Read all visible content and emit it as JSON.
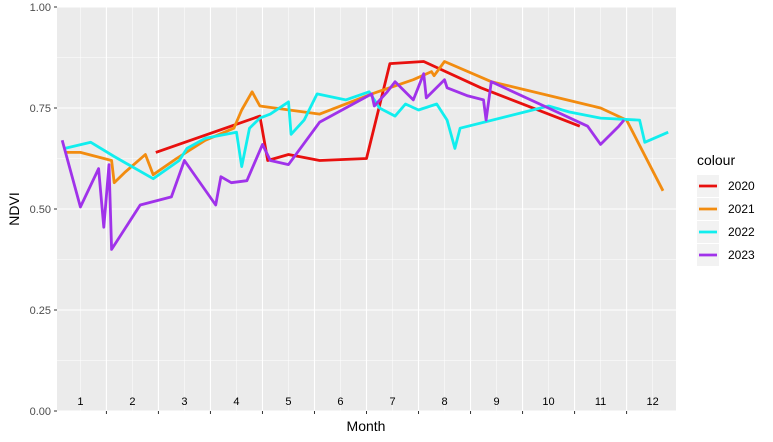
{
  "chart_data": {
    "type": "line",
    "xlabel": "Month",
    "ylabel": "NDVI",
    "ylim": [
      0,
      1
    ],
    "xlim": [
      0.55,
      12.45
    ],
    "yticks": [
      "0.00",
      "0.25",
      "0.50",
      "0.75",
      "1.00"
    ],
    "month_labels": [
      "1",
      "2",
      "3",
      "4",
      "5",
      "6",
      "7",
      "8",
      "9",
      "10",
      "11",
      "12"
    ],
    "grid": true,
    "legend": {
      "title": "colour",
      "position": "right"
    },
    "series": [
      {
        "name": "2020",
        "color": "#e8100e",
        "points": [
          [
            2.45,
            0.64
          ],
          [
            4.45,
            0.73
          ],
          [
            4.6,
            0.62
          ],
          [
            5.0,
            0.635
          ],
          [
            5.6,
            0.62
          ],
          [
            6.5,
            0.625
          ],
          [
            6.95,
            0.86
          ],
          [
            7.6,
            0.865
          ],
          [
            8.7,
            0.8
          ],
          [
            10.6,
            0.705
          ]
        ]
      },
      {
        "name": "2021",
        "color": "#f28c10",
        "points": [
          [
            0.7,
            0.64
          ],
          [
            1.0,
            0.64
          ],
          [
            1.6,
            0.62
          ],
          [
            1.65,
            0.565
          ],
          [
            1.85,
            0.59
          ],
          [
            2.25,
            0.635
          ],
          [
            2.4,
            0.585
          ],
          [
            2.85,
            0.625
          ],
          [
            3.4,
            0.67
          ],
          [
            3.95,
            0.7
          ],
          [
            4.1,
            0.745
          ],
          [
            4.3,
            0.79
          ],
          [
            4.45,
            0.755
          ],
          [
            5.6,
            0.735
          ],
          [
            6.6,
            0.785
          ],
          [
            7.4,
            0.82
          ],
          [
            7.75,
            0.84
          ],
          [
            7.8,
            0.83
          ],
          [
            8.0,
            0.865
          ],
          [
            8.9,
            0.815
          ],
          [
            11.0,
            0.75
          ],
          [
            11.5,
            0.72
          ],
          [
            12.2,
            0.545
          ]
        ]
      },
      {
        "name": "2022",
        "color": "#11eeee",
        "points": [
          [
            0.7,
            0.65
          ],
          [
            1.2,
            0.665
          ],
          [
            1.65,
            0.63
          ],
          [
            2.4,
            0.575
          ],
          [
            2.9,
            0.62
          ],
          [
            3.05,
            0.65
          ],
          [
            3.4,
            0.675
          ],
          [
            4.0,
            0.69
          ],
          [
            4.1,
            0.605
          ],
          [
            4.25,
            0.7
          ],
          [
            4.45,
            0.725
          ],
          [
            4.65,
            0.735
          ],
          [
            5.0,
            0.765
          ],
          [
            5.05,
            0.685
          ],
          [
            5.3,
            0.72
          ],
          [
            5.55,
            0.785
          ],
          [
            6.1,
            0.77
          ],
          [
            6.55,
            0.79
          ],
          [
            6.75,
            0.75
          ],
          [
            7.05,
            0.73
          ],
          [
            7.25,
            0.76
          ],
          [
            7.5,
            0.745
          ],
          [
            7.85,
            0.76
          ],
          [
            8.05,
            0.72
          ],
          [
            8.2,
            0.65
          ],
          [
            8.3,
            0.7
          ],
          [
            10.0,
            0.755
          ],
          [
            10.4,
            0.74
          ],
          [
            11.0,
            0.725
          ],
          [
            11.75,
            0.72
          ],
          [
            11.85,
            0.665
          ],
          [
            12.3,
            0.69
          ]
        ]
      },
      {
        "name": "2023",
        "color": "#a032ea",
        "points": [
          [
            0.65,
            0.67
          ],
          [
            1.0,
            0.505
          ],
          [
            1.35,
            0.6
          ],
          [
            1.45,
            0.455
          ],
          [
            1.55,
            0.61
          ],
          [
            1.6,
            0.4
          ],
          [
            2.15,
            0.51
          ],
          [
            2.75,
            0.53
          ],
          [
            3.0,
            0.62
          ],
          [
            3.6,
            0.51
          ],
          [
            3.7,
            0.58
          ],
          [
            3.9,
            0.565
          ],
          [
            4.2,
            0.57
          ],
          [
            4.5,
            0.66
          ],
          [
            4.65,
            0.62
          ],
          [
            5.0,
            0.61
          ],
          [
            5.6,
            0.715
          ],
          [
            6.6,
            0.785
          ],
          [
            6.65,
            0.755
          ],
          [
            6.9,
            0.79
          ],
          [
            7.05,
            0.815
          ],
          [
            7.4,
            0.77
          ],
          [
            7.6,
            0.835
          ],
          [
            7.65,
            0.775
          ],
          [
            8.0,
            0.82
          ],
          [
            8.05,
            0.8
          ],
          [
            8.45,
            0.78
          ],
          [
            8.75,
            0.77
          ],
          [
            8.8,
            0.72
          ],
          [
            8.9,
            0.815
          ],
          [
            10.25,
            0.735
          ],
          [
            10.75,
            0.705
          ],
          [
            11.0,
            0.66
          ],
          [
            11.35,
            0.705
          ],
          [
            11.45,
            0.72
          ]
        ]
      }
    ]
  }
}
